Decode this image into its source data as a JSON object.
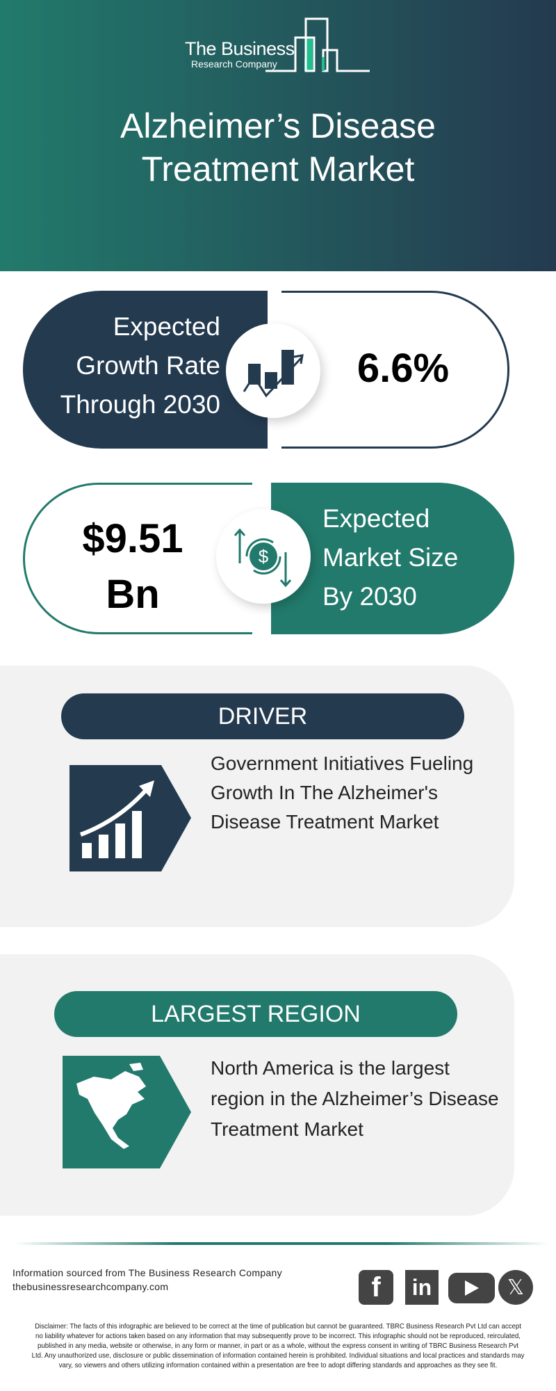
{
  "header": {
    "logo_line1": "The Business",
    "logo_line2": "Research Company",
    "title_line1": "Alzheimer’s Disease",
    "title_line2": "Treatment Market"
  },
  "growth": {
    "label_lines": [
      "Expected",
      "Growth Rate",
      "Through 2030"
    ],
    "value": "6.6%",
    "icon": "growth-chart-icon"
  },
  "market": {
    "value_line1": "$9.51",
    "value_line2": "Bn",
    "label_lines": [
      "Expected",
      "Market Size",
      "By 2030"
    ],
    "icon": "dollar-exchange-icon"
  },
  "driver": {
    "heading": "DRIVER",
    "text": "Government Initiatives Fueling Growth In The Alzheimer's Disease Treatment Market",
    "icon": "rising-bar-chart-icon"
  },
  "region": {
    "heading": "LARGEST REGION",
    "text": "North America is the largest region in the Alzheimer’s Disease Treatment Market",
    "icon": "north-america-map-icon"
  },
  "footer": {
    "source": "Information sourced from The Business Research Company",
    "url": "thebusinessresearchcompany.com",
    "social": [
      "facebook",
      "linkedin",
      "youtube",
      "x"
    ],
    "disclaimer": "Disclaimer: The facts of this infographic are believed to be correct at the time of publication but cannot be guaranteed. TBRC Business Research Pvt Ltd can accept no liability whatever for actions taken based on any information that may subsequently prove to be incorrect. This infographic should not be reproduced, reirculated, published in any media, website or otherwise, in any form or manner, in part or as a whole, without the express consent in writing of TBRC Business Research Pvt Ltd. Any unauthorized use, disclosure or public dissemination of information contained herein is prohibited. Individual situations and local practices and standards may vary, so viewers and others utilizing information contained within a presentation are free to adopt differing standards and approaches as they see fit."
  },
  "colors": {
    "teal": "#227a6c",
    "navy": "#243a4f",
    "accent_green": "#1fbf8f",
    "section_bg": "#f2f2f2"
  }
}
